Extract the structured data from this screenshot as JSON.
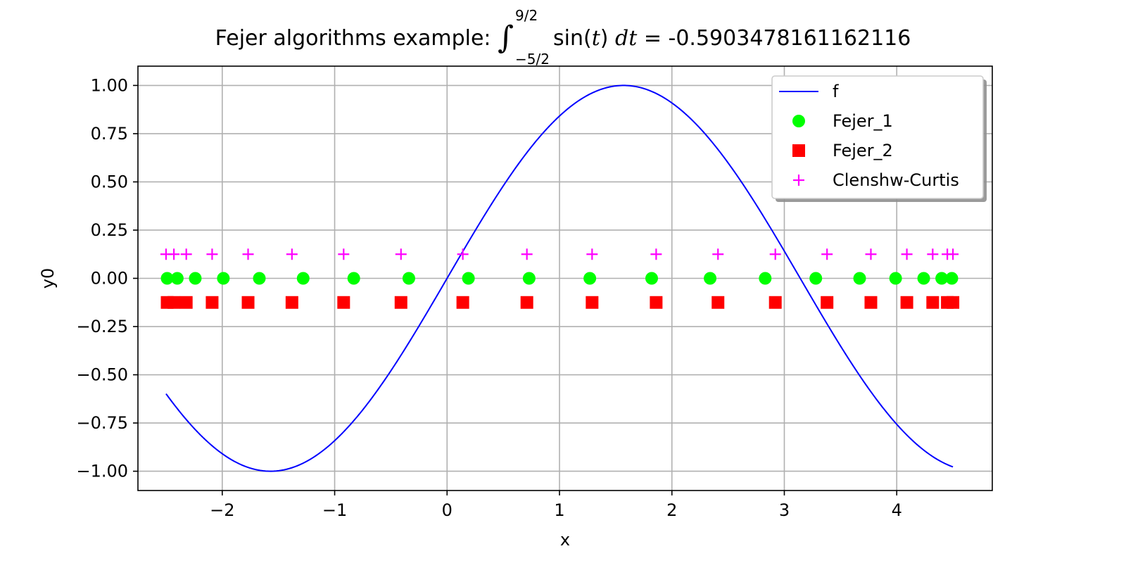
{
  "chart_data": {
    "type": "line",
    "title": {
      "prefix": "Fejer algorithms example:",
      "upper_limit": "9/2",
      "lower_limit": "−5/2",
      "integrand": "sin(",
      "variable": "t",
      "close": ")",
      "differential": "dt",
      "equals": " = -0.5903478161162116"
    },
    "xlabel": "x",
    "ylabel": "y0",
    "xlim": [
      -2.75,
      4.85
    ],
    "ylim": [
      -1.1,
      1.1
    ],
    "xticks": [
      -2,
      -1,
      0,
      1,
      2,
      3,
      4
    ],
    "xtick_labels": [
      "−2",
      "−1",
      "0",
      "1",
      "2",
      "3",
      "4"
    ],
    "yticks": [
      1.0,
      0.75,
      0.5,
      0.25,
      0.0,
      -0.25,
      -0.5,
      -0.75,
      -1.0
    ],
    "ytick_labels": [
      "1.00",
      "0.75",
      "0.50",
      "0.25",
      "0.00",
      "−0.25",
      "−0.50",
      "−0.75",
      "−1.00"
    ],
    "grid": true,
    "legend_placement": "top-right",
    "series": [
      {
        "name": "f",
        "kind": "line",
        "color": "#0000ff",
        "function": "sin(x)",
        "x_range": [
          -2.5,
          4.5
        ]
      },
      {
        "name": "Fejer_1",
        "kind": "scatter",
        "marker": "circle",
        "color": "#00ff00",
        "x": [
          -2.49,
          -2.4,
          -2.24,
          -1.99,
          -1.67,
          -1.28,
          -0.83,
          -0.34,
          0.19,
          0.73,
          1.27,
          1.82,
          2.34,
          2.83,
          3.28,
          3.67,
          3.99,
          4.24,
          4.4,
          4.49
        ],
        "y": [
          0,
          0,
          0,
          0,
          0,
          0,
          0,
          0,
          0,
          0,
          0,
          0,
          0,
          0,
          0,
          0,
          0,
          0,
          0,
          0
        ]
      },
      {
        "name": "Fejer_2",
        "kind": "scatter",
        "marker": "square",
        "color": "#ff0000",
        "x": [
          -2.49,
          -2.43,
          -2.32,
          -2.09,
          -1.77,
          -1.38,
          -0.92,
          -0.41,
          0.14,
          0.71,
          1.29,
          1.86,
          2.41,
          2.92,
          3.38,
          3.77,
          4.09,
          4.32,
          4.45,
          4.5
        ],
        "y": [
          -0.125,
          -0.125,
          -0.125,
          -0.125,
          -0.125,
          -0.125,
          -0.125,
          -0.125,
          -0.125,
          -0.125,
          -0.125,
          -0.125,
          -0.125,
          -0.125,
          -0.125,
          -0.125,
          -0.125,
          -0.125,
          -0.125,
          -0.125
        ]
      },
      {
        "name": "Clenshw-Curtis",
        "kind": "scatter",
        "marker": "plus",
        "color": "#ff00ff",
        "x": [
          -2.5,
          -2.43,
          -2.32,
          -2.09,
          -1.77,
          -1.38,
          -0.92,
          -0.41,
          0.14,
          0.71,
          1.29,
          1.86,
          2.41,
          2.92,
          3.38,
          3.77,
          4.09,
          4.32,
          4.45,
          4.5
        ],
        "y": [
          0.125,
          0.125,
          0.125,
          0.125,
          0.125,
          0.125,
          0.125,
          0.125,
          0.125,
          0.125,
          0.125,
          0.125,
          0.125,
          0.125,
          0.125,
          0.125,
          0.125,
          0.125,
          0.125,
          0.125
        ]
      }
    ]
  }
}
